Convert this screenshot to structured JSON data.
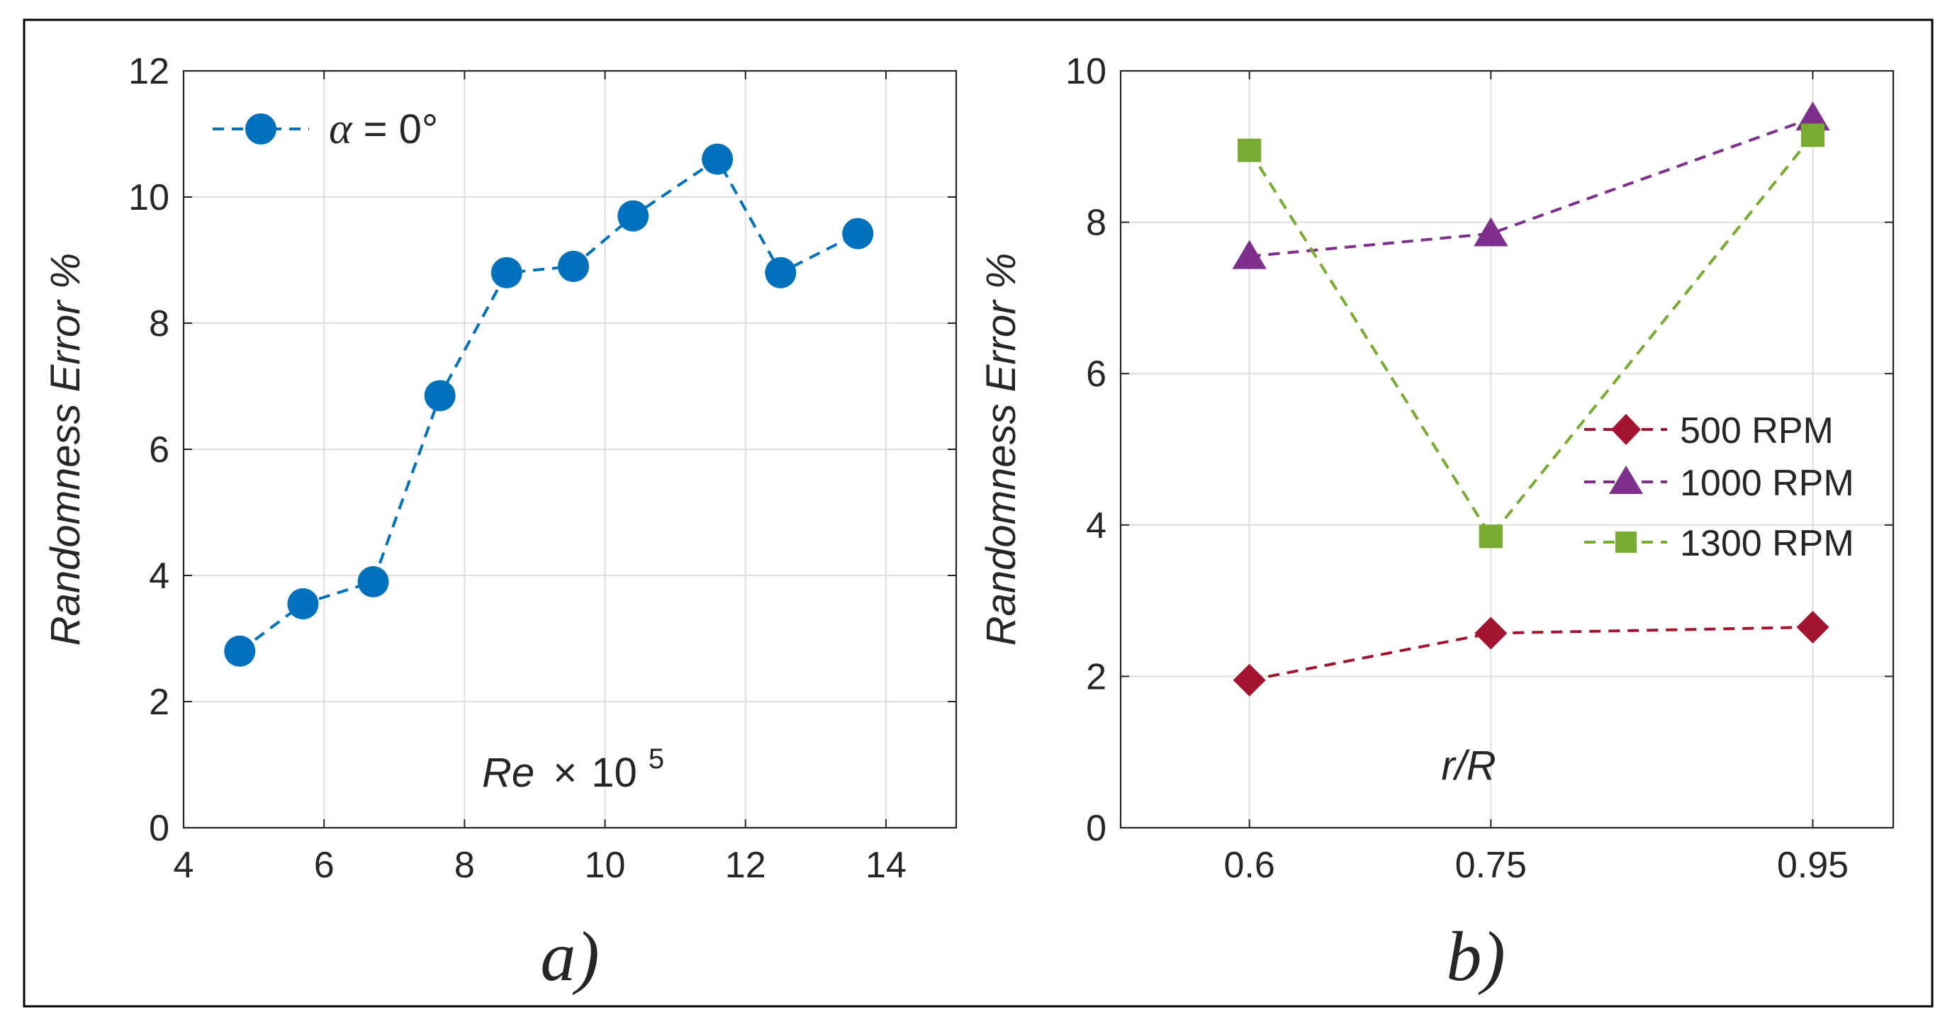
{
  "chart_data": [
    {
      "type": "line",
      "panel_label": "a)",
      "title": "",
      "xlabel_main": "Re",
      "xlabel_times": "×",
      "xlabel_base": "10",
      "xlabel_exp": "5",
      "ylabel": "Randomness Error %",
      "xlim": [
        4,
        15
      ],
      "ylim": [
        0,
        12
      ],
      "xticks": [
        4,
        6,
        8,
        10,
        12,
        14
      ],
      "yticks": [
        0,
        2,
        4,
        6,
        8,
        10,
        12
      ],
      "grid": true,
      "legend_position": "top-left",
      "series": [
        {
          "name_symbol": "α",
          "name_rest": " = 0°",
          "color": "#0072BD",
          "marker": "circle",
          "line": "dashed",
          "x": [
            4.8,
            5.7,
            6.7,
            7.65,
            8.6,
            9.55,
            10.4,
            11.6,
            12.5,
            13.6
          ],
          "y": [
            2.8,
            3.55,
            3.9,
            6.85,
            8.8,
            8.9,
            9.7,
            10.6,
            8.8,
            9.42
          ]
        }
      ]
    },
    {
      "type": "line",
      "panel_label": "b)",
      "title": "",
      "xlabel": "r/R",
      "ylabel": "Randomness Error %",
      "xlim": [
        0.52,
        1.0
      ],
      "ylim": [
        0,
        10
      ],
      "xticks": [
        0.6,
        0.75,
        0.95
      ],
      "xtick_labels": [
        "0.6",
        "0.75",
        "0.95"
      ],
      "yticks": [
        0,
        2,
        4,
        6,
        8,
        10
      ],
      "grid": true,
      "legend_position": "center-right",
      "series": [
        {
          "name": "500 RPM",
          "color": "#A2142F",
          "marker": "diamond",
          "line": "dashed",
          "x": [
            0.6,
            0.75,
            0.95
          ],
          "y": [
            1.95,
            2.57,
            2.65
          ]
        },
        {
          "name": "1000 RPM",
          "color": "#7E2F8E",
          "marker": "triangle",
          "line": "dashed",
          "x": [
            0.6,
            0.75,
            0.95
          ],
          "y": [
            7.55,
            7.85,
            9.38
          ]
        },
        {
          "name": "1300 RPM",
          "color": "#77AC30",
          "marker": "square",
          "line": "dashed",
          "x": [
            0.6,
            0.75,
            0.95
          ],
          "y": [
            8.95,
            3.85,
            9.15
          ]
        }
      ]
    }
  ]
}
